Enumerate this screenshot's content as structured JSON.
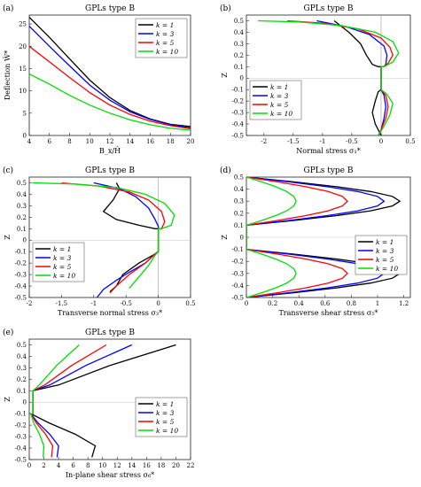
{
  "chart_data": [
    {
      "panel_label": "(a)",
      "title": "GPLs type B",
      "type": "line",
      "xlabel": "B_x/Ĥ",
      "ylabel": "Deflection Ŵ*",
      "xlim": [
        4,
        20
      ],
      "ylim": [
        0,
        27
      ],
      "xticks": [
        4,
        6,
        8,
        10,
        12,
        14,
        16,
        18,
        20
      ],
      "yticks": [
        0,
        5,
        10,
        15,
        20,
        25
      ],
      "grid": false,
      "legend_position": "top-right",
      "series": [
        {
          "name": "k = 1",
          "color": "#000000",
          "x": [
            4,
            6,
            8,
            10,
            12,
            14,
            16,
            18,
            20
          ],
          "y": [
            26.5,
            22.0,
            17.2,
            12.4,
            8.5,
            5.6,
            3.7,
            2.5,
            2.0
          ]
        },
        {
          "name": "k = 3",
          "color": "#0000ff",
          "x": [
            4,
            6,
            8,
            10,
            12,
            14,
            16,
            18,
            20
          ],
          "y": [
            24.5,
            20.0,
            15.6,
            11.3,
            7.9,
            5.3,
            3.6,
            2.4,
            1.7
          ]
        },
        {
          "name": "k = 5",
          "color": "#ff0000",
          "x": [
            4,
            6,
            8,
            10,
            12,
            14,
            16,
            18,
            20
          ],
          "y": [
            20.0,
            16.5,
            13.0,
            9.6,
            6.8,
            4.7,
            3.2,
            2.2,
            1.5
          ]
        },
        {
          "name": "k = 10",
          "color": "#00dd00",
          "x": [
            4,
            6,
            8,
            10,
            12,
            14,
            16,
            18,
            20
          ],
          "y": [
            13.8,
            11.5,
            9.0,
            6.8,
            5.0,
            3.5,
            2.4,
            1.6,
            1.2
          ]
        }
      ]
    },
    {
      "panel_label": "(b)",
      "title": "GPLs type B",
      "type": "line",
      "xlabel": "Normal stress σ₁*",
      "ylabel": "Z",
      "xlim": [
        -2.3,
        0.5
      ],
      "ylim": [
        -0.5,
        0.55
      ],
      "xticks": [
        -2,
        -1.5,
        -1,
        -0.5,
        0,
        0.5
      ],
      "yticks": [
        -0.5,
        -0.4,
        -0.3,
        -0.2,
        -0.1,
        0,
        0.1,
        0.2,
        0.3,
        0.4,
        0.5
      ],
      "grid": false,
      "legend_position": "bottom-left",
      "series": [
        {
          "name": "k = 1",
          "color": "#000000",
          "x": [
            -0.8,
            -0.55,
            -0.35,
            -0.25,
            -0.15,
            -0.05,
            0,
            0,
            0,
            -0.05,
            -0.1,
            -0.15,
            -0.1,
            -0.05,
            0
          ],
          "y": [
            0.5,
            0.4,
            0.3,
            0.2,
            0.12,
            0.1,
            0.1,
            0,
            -0.1,
            -0.12,
            -0.2,
            -0.3,
            -0.4,
            -0.45,
            -0.5
          ]
        },
        {
          "name": "k = 3",
          "color": "#0000ff",
          "x": [
            -1.1,
            -0.6,
            -0.2,
            0.05,
            0.1,
            0.08,
            0.05,
            0,
            0,
            0.05,
            0.08,
            0.05,
            0,
            -0.05
          ],
          "y": [
            0.5,
            0.45,
            0.38,
            0.28,
            0.2,
            0.12,
            0.1,
            0.1,
            -0.1,
            -0.15,
            -0.25,
            -0.35,
            -0.45,
            -0.5
          ]
        },
        {
          "name": "k = 5",
          "color": "#ff0000",
          "x": [
            -1.6,
            -1.0,
            -0.4,
            0.0,
            0.15,
            0.2,
            0.12,
            0.05,
            0,
            0,
            0.08,
            0.12,
            0.08,
            0,
            -0.05
          ],
          "y": [
            0.5,
            0.48,
            0.43,
            0.35,
            0.27,
            0.2,
            0.13,
            0.1,
            0.1,
            -0.1,
            -0.15,
            -0.25,
            -0.35,
            -0.45,
            -0.5
          ]
        },
        {
          "name": "k = 10",
          "color": "#00dd00",
          "x": [
            -2.1,
            -1.4,
            -0.7,
            -0.1,
            0.2,
            0.3,
            0.2,
            0.05,
            0,
            0,
            0.1,
            0.2,
            0.15,
            0.05,
            -0.05
          ],
          "y": [
            0.5,
            0.49,
            0.46,
            0.4,
            0.32,
            0.22,
            0.14,
            0.1,
            0.1,
            -0.1,
            -0.14,
            -0.22,
            -0.32,
            -0.42,
            -0.5
          ]
        }
      ]
    },
    {
      "panel_label": "(c)",
      "title": "GPLs type B",
      "type": "line",
      "xlabel": "Transverse normal stress σ₃*",
      "ylabel": "Z",
      "xlim": [
        -2,
        0.5
      ],
      "ylim": [
        -0.5,
        0.55
      ],
      "xticks": [
        -2,
        -1.5,
        -1,
        -0.5,
        0,
        0.5
      ],
      "yticks": [
        -0.5,
        -0.4,
        -0.3,
        -0.2,
        -0.1,
        0,
        0.1,
        0.2,
        0.3,
        0.4,
        0.5
      ],
      "grid": false,
      "legend_position": "bottom-left",
      "series": [
        {
          "name": "k = 1",
          "color": "#000000",
          "x": [
            -0.65,
            -0.6,
            -0.7,
            -0.85,
            -0.65,
            -0.3,
            -0.05,
            0,
            0,
            -0.05,
            -0.3,
            -0.55,
            -0.65,
            -0.75
          ],
          "y": [
            0.5,
            0.45,
            0.35,
            0.25,
            0.18,
            0.13,
            0.1,
            0.1,
            -0.1,
            -0.12,
            -0.2,
            -0.3,
            -0.4,
            -0.45
          ]
        },
        {
          "name": "k = 3",
          "color": "#0000ff",
          "x": [
            -1.0,
            -0.6,
            -0.35,
            -0.15,
            -0.05,
            0,
            0,
            0,
            -0.05,
            -0.2,
            -0.45,
            -0.65,
            -0.85,
            -0.95
          ],
          "y": [
            0.5,
            0.45,
            0.38,
            0.28,
            0.18,
            0.12,
            0.1,
            -0.1,
            -0.12,
            -0.2,
            -0.28,
            -0.35,
            -0.43,
            -0.5
          ]
        },
        {
          "name": "k = 5",
          "color": "#ff0000",
          "x": [
            -1.5,
            -0.9,
            -0.45,
            -0.15,
            0.05,
            0.1,
            0.05,
            0,
            0,
            -0.05,
            -0.2,
            -0.45,
            -0.65,
            -0.75
          ],
          "y": [
            0.5,
            0.47,
            0.42,
            0.35,
            0.25,
            0.16,
            0.1,
            0.1,
            -0.1,
            -0.12,
            -0.2,
            -0.3,
            -0.4,
            -0.46
          ]
        },
        {
          "name": "k = 10",
          "color": "#00dd00",
          "x": [
            -1.95,
            -1.3,
            -0.65,
            -0.2,
            0.1,
            0.25,
            0.2,
            0.05,
            0,
            0,
            -0.05,
            -0.15,
            -0.3,
            -0.45
          ],
          "y": [
            0.5,
            0.49,
            0.46,
            0.4,
            0.32,
            0.22,
            0.13,
            0.1,
            0.1,
            -0.1,
            -0.13,
            -0.22,
            -0.32,
            -0.42
          ]
        }
      ]
    },
    {
      "panel_label": "(d)",
      "title": "GPLs type B",
      "type": "line",
      "xlabel": "Transverse shear stress σ₅*",
      "ylabel": "Z",
      "xlim": [
        0,
        1.25
      ],
      "ylim": [
        -0.5,
        0.5
      ],
      "xticks": [
        0,
        0.2,
        0.4,
        0.6,
        0.8,
        1,
        1.2
      ],
      "yticks": [
        -0.5,
        -0.4,
        -0.3,
        -0.2,
        -0.1,
        0,
        0.1,
        0.2,
        0.3,
        0.4,
        0.5
      ],
      "grid": false,
      "legend_position": "right",
      "series": [
        {
          "name": "k = 1",
          "color": "#000000",
          "peak": 1.17
        },
        {
          "name": "k = 3",
          "color": "#0000ff",
          "peak": 1.05
        },
        {
          "name": "k = 5",
          "color": "#ff0000",
          "peak": 0.77
        },
        {
          "name": "k = 10",
          "color": "#00dd00",
          "peak": 0.38
        }
      ]
    },
    {
      "panel_label": "(e)",
      "title": "GPLs type B",
      "type": "line",
      "xlabel": "In-plane shear stress σ₆*",
      "ylabel": "Z",
      "xlim": [
        0,
        22
      ],
      "ylim": [
        -0.5,
        0.55
      ],
      "xticks": [
        0,
        2,
        4,
        6,
        8,
        10,
        12,
        14,
        16,
        18,
        20,
        22
      ],
      "yticks": [
        -0.5,
        -0.4,
        -0.3,
        -0.2,
        -0.1,
        0,
        0.1,
        0.2,
        0.3,
        0.4,
        0.5
      ],
      "grid": false,
      "legend_position": "right",
      "series": [
        {
          "name": "k = 1",
          "color": "#000000",
          "top": 20.0,
          "bottom": 9.0
        },
        {
          "name": "k = 3",
          "color": "#0000ff",
          "top": 14.0,
          "bottom": 4.0
        },
        {
          "name": "k = 5",
          "color": "#ff0000",
          "top": 10.5,
          "bottom": 3.2
        },
        {
          "name": "k = 10",
          "color": "#00dd00",
          "top": 6.8,
          "bottom": 2.0
        }
      ]
    }
  ]
}
